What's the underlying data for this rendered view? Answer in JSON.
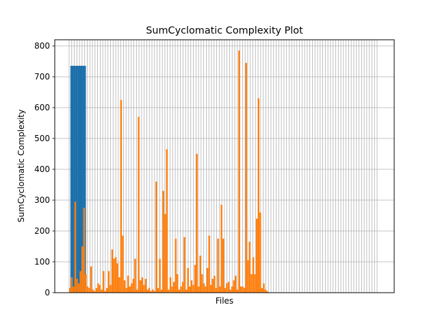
{
  "chart_data": {
    "type": "bar",
    "title": "SumCyclomatic Complexity Plot",
    "xlabel": "Files",
    "ylabel": "SumCyclomatic Complexity",
    "ylim": [
      0,
      820
    ],
    "yticks": [
      0,
      100,
      200,
      300,
      400,
      500,
      600,
      700,
      800
    ],
    "xticks_count": 120,
    "grid": true,
    "colors": {
      "series1": "#1f77b4",
      "series2": "#ff7f0e",
      "grid": "#b0b0b0"
    },
    "series": [
      {
        "values": [
          735,
          735,
          735,
          735,
          735,
          735,
          735,
          735
        ]
      },
      {
        "values": [
          15,
          50,
          20,
          295,
          45,
          30,
          70,
          150,
          275,
          60,
          20,
          15,
          85,
          10,
          5,
          15,
          30,
          25,
          10,
          70,
          5,
          15,
          70,
          25,
          140,
          110,
          115,
          95,
          50,
          625,
          185,
          40,
          15,
          55,
          20,
          30,
          45,
          110,
          10,
          570,
          40,
          50,
          25,
          45,
          10,
          15,
          5,
          10,
          5,
          360,
          15,
          110,
          10,
          330,
          255,
          465,
          10,
          50,
          20,
          35,
          175,
          60,
          10,
          20,
          35,
          180,
          10,
          80,
          20,
          40,
          25,
          90,
          450,
          20,
          120,
          60,
          30,
          20,
          80,
          185,
          25,
          45,
          55,
          15,
          175,
          20,
          285,
          175,
          15,
          30,
          35,
          10,
          20,
          40,
          55,
          10,
          785,
          20,
          20,
          15,
          745,
          105,
          165,
          60,
          115,
          60,
          240,
          630,
          260,
          15,
          30,
          10,
          5
        ]
      }
    ]
  }
}
